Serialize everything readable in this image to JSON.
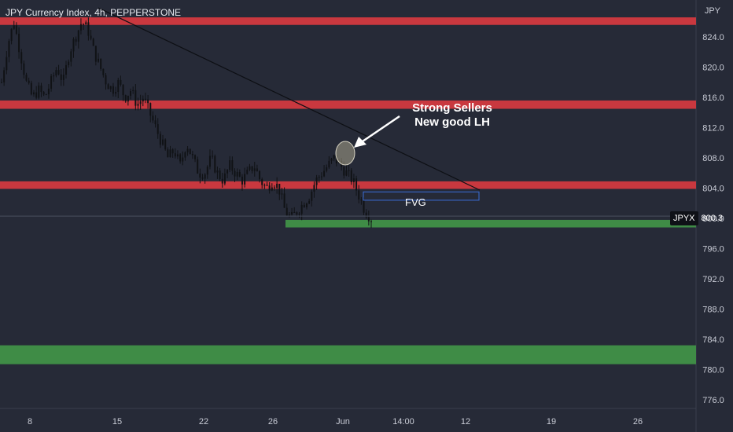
{
  "chart_data": {
    "type": "candlestick",
    "title": "JPY Currency Index, 4h, PEPPERSTONE",
    "currency": "JPY",
    "symbol": "JPYX",
    "last_price": "800.3",
    "y_ticks": [
      "824.0",
      "820.0",
      "816.0",
      "812.0",
      "808.0",
      "804.0",
      "800.0",
      "796.0",
      "792.0",
      "788.0",
      "784.0",
      "780.0",
      "776.0"
    ],
    "x_ticks": [
      "8",
      "15",
      "22",
      "26",
      "Jun",
      "14:00",
      "12",
      "19",
      "26"
    ],
    "ylim": [
      775,
      827.5
    ],
    "resistance_zones": [
      {
        "name": "resistance",
        "from": 825.6,
        "to": 826.6
      },
      {
        "name": "resistance",
        "from": 814.5,
        "to": 815.6
      },
      {
        "name": "resistance",
        "from": 803.9,
        "to": 804.9
      }
    ],
    "support_zones": [
      {
        "name": "support",
        "from": 798.8,
        "to": 799.8
      },
      {
        "name": "support",
        "from": 780.7,
        "to": 783.2
      }
    ],
    "fvg": {
      "label": "FVG",
      "from": 802.4,
      "to": 803.5
    },
    "annotation": [
      "Strong Sellers",
      "New good LH"
    ],
    "price_path": [
      818,
      823,
      826,
      822,
      818,
      816,
      817,
      816,
      818,
      820,
      818,
      822,
      824,
      826,
      825,
      822,
      820,
      818,
      817,
      818,
      816,
      817,
      815,
      816,
      814,
      812,
      810,
      808,
      809,
      807,
      810,
      808,
      806,
      806,
      808,
      806,
      805,
      807,
      806,
      805,
      806,
      807,
      805,
      804,
      805,
      804,
      801,
      800,
      801,
      802,
      803,
      805,
      806,
      807,
      808,
      807,
      806,
      805,
      803,
      801,
      800
    ]
  },
  "colors": {
    "background": "#262a37",
    "resistance": "#c9383f",
    "support": "#3f8c46",
    "fvg": "#3a6dd8",
    "candle": "#101215",
    "trendline": "#0d0f14",
    "grid": "#2d3140"
  }
}
